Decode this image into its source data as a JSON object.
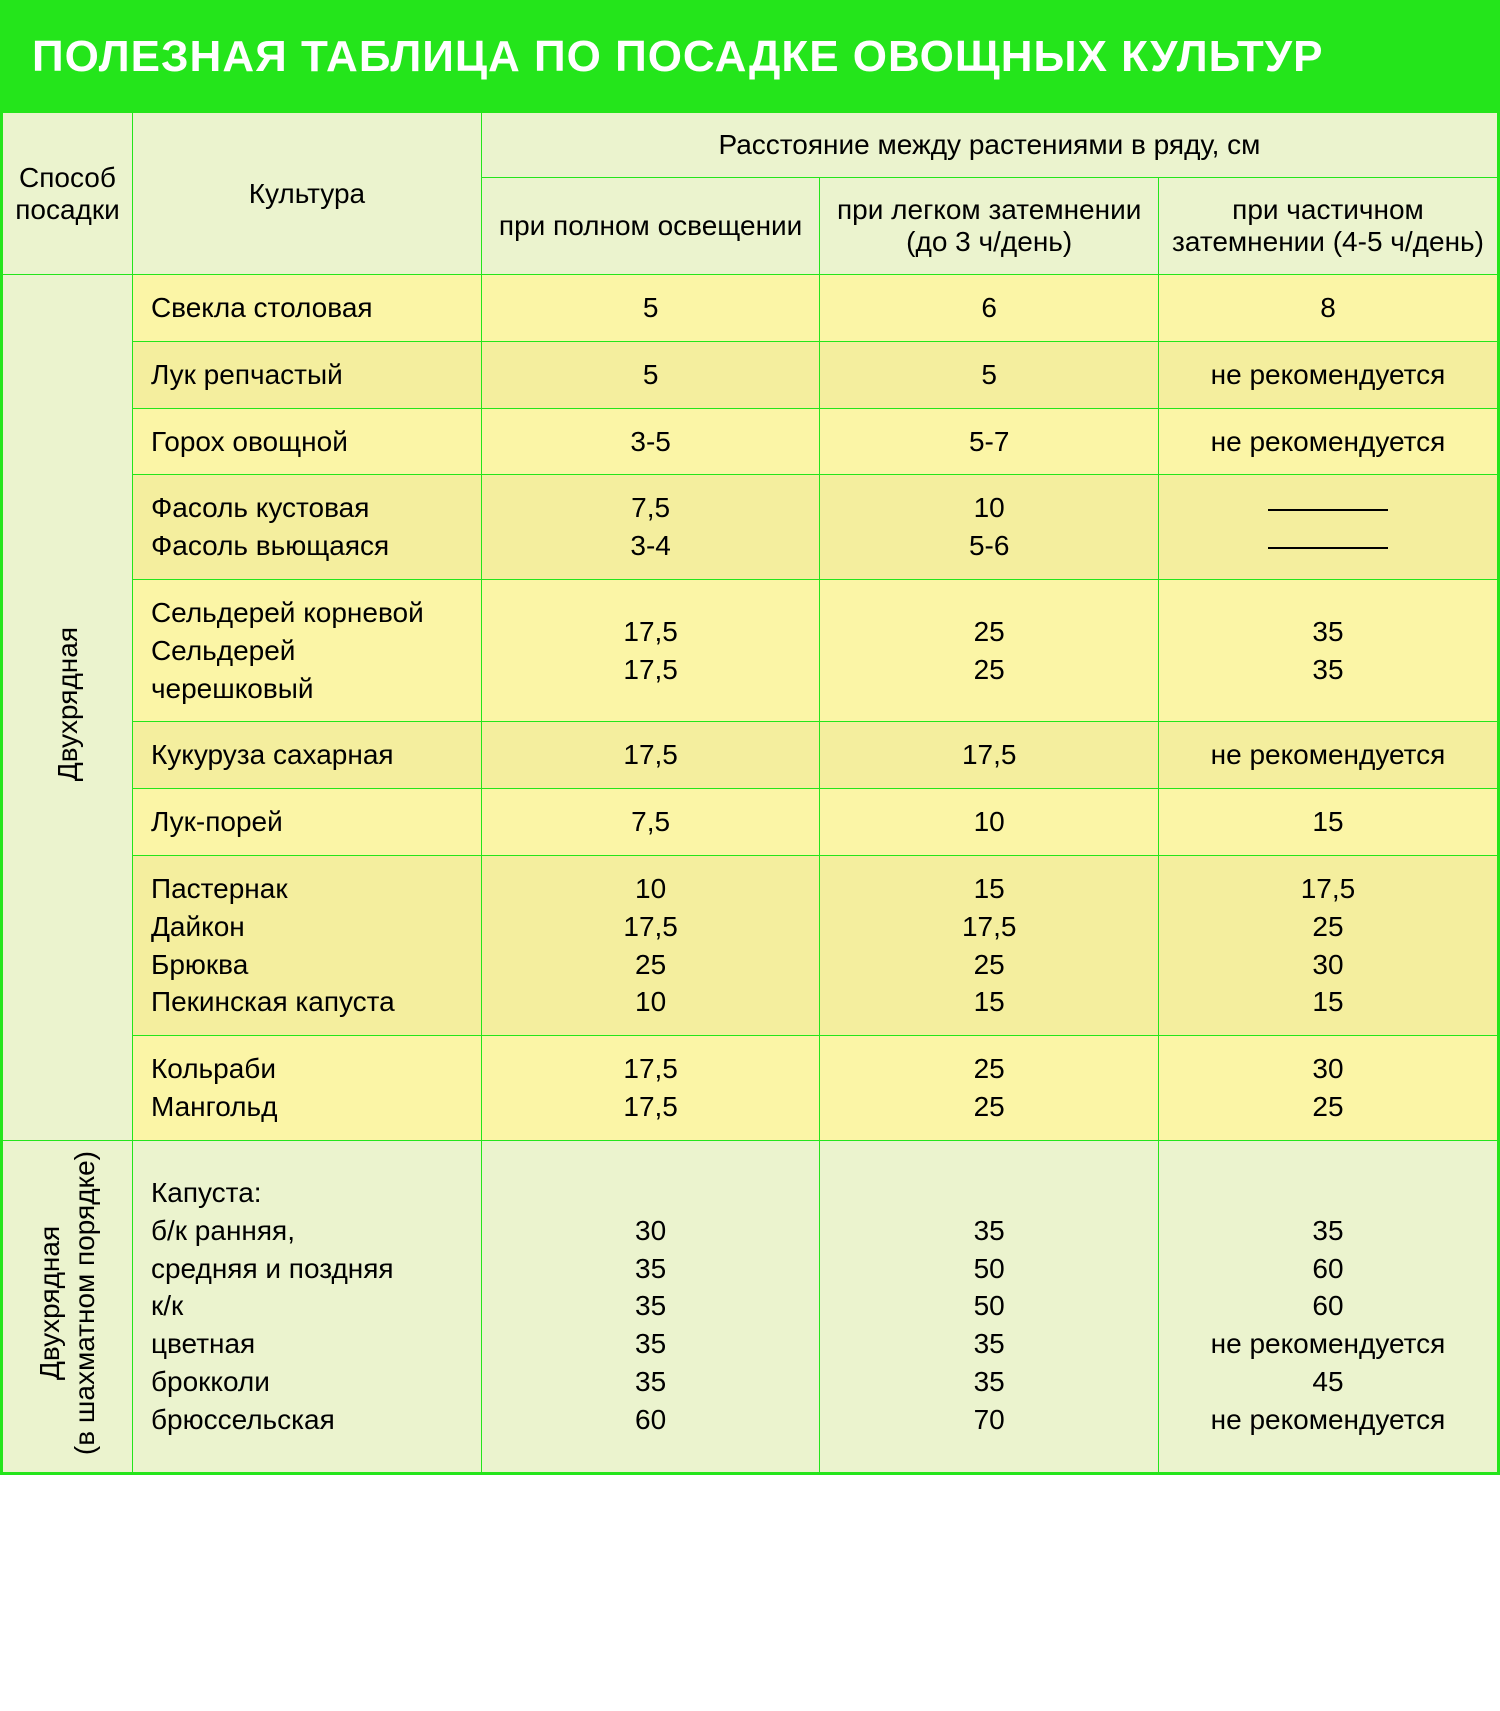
{
  "colors": {
    "accent": "#24e51b",
    "header_bg": "#ebf3ce",
    "row_alt1": "#fbf5a6",
    "row_alt2": "#f4ee9e",
    "title_text": "#ffffff",
    "body_text": "#000000"
  },
  "title": "ПОЛЕЗНАЯ ТАБЛИЦА ПО ПОСАДКЕ ОВОЩНЫХ КУЛЬТУР",
  "header": {
    "method": "Способ посадки",
    "culture": "Культура",
    "spacing_group": "Расстояние между растениями в ряду, см",
    "col1": "при полном освещении",
    "col2": "при легком затемнении (до 3 ч/день)",
    "col3": "при частичном затемнении (4-5 ч/день)"
  },
  "groups": [
    {
      "method": "Двухрядная",
      "rows": [
        {
          "culture": [
            "Свекла столовая"
          ],
          "v1": [
            "5"
          ],
          "v2": [
            "6"
          ],
          "v3": [
            "8"
          ]
        },
        {
          "culture": [
            "Лук репчастый"
          ],
          "v1": [
            "5"
          ],
          "v2": [
            "5"
          ],
          "v3": [
            "не рекомендуется"
          ]
        },
        {
          "culture": [
            "Горох овощной"
          ],
          "v1": [
            "3-5"
          ],
          "v2": [
            "5-7"
          ],
          "v3": [
            "не рекомендуется"
          ]
        },
        {
          "culture": [
            "Фасоль кустовая",
            "Фасоль вьющаяся"
          ],
          "v1": [
            "7,5",
            "3-4"
          ],
          "v2": [
            "10",
            "5-6"
          ],
          "v3": [
            "—dash—",
            "—dash—"
          ]
        },
        {
          "culture": [
            "Сельдерей корневой",
            "Сельдерей черешковый"
          ],
          "v1": [
            "17,5",
            "17,5"
          ],
          "v2": [
            "25",
            "25"
          ],
          "v3": [
            "35",
            "35"
          ]
        },
        {
          "culture": [
            "Кукуруза сахарная"
          ],
          "v1": [
            "17,5"
          ],
          "v2": [
            "17,5"
          ],
          "v3": [
            "не рекомендуется"
          ]
        },
        {
          "culture": [
            "Лук-порей"
          ],
          "v1": [
            "7,5"
          ],
          "v2": [
            "10"
          ],
          "v3": [
            "15"
          ]
        },
        {
          "culture": [
            "Пастернак",
            "Дайкон",
            "Брюква",
            "Пекинская капуста"
          ],
          "v1": [
            "10",
            "17,5",
            "25",
            "10"
          ],
          "v2": [
            "15",
            "17,5",
            "25",
            "15"
          ],
          "v3": [
            "17,5",
            "25",
            "30",
            "15"
          ]
        },
        {
          "culture": [
            "Кольраби",
            "Мангольд"
          ],
          "v1": [
            "17,5",
            "17,5"
          ],
          "v2": [
            "25",
            "25"
          ],
          "v3": [
            "30",
            "25"
          ]
        }
      ]
    },
    {
      "method": "Двухрядная\n(в шахматном порядке)",
      "rows": [
        {
          "culture": [
            "Капуста:",
            "б/к ранняя,",
            "средняя и поздняя",
            "к/к",
            "цветная",
            "брокколи",
            "брюссельская"
          ],
          "v1": [
            "",
            "30",
            "35",
            "35",
            "35",
            "35",
            "60"
          ],
          "v2": [
            "",
            "35",
            "50",
            "50",
            "35",
            "35",
            "70"
          ],
          "v3": [
            "",
            "35",
            "60",
            "60",
            "не рекомендуется",
            "45",
            "не рекомендуется"
          ]
        }
      ]
    }
  ]
}
